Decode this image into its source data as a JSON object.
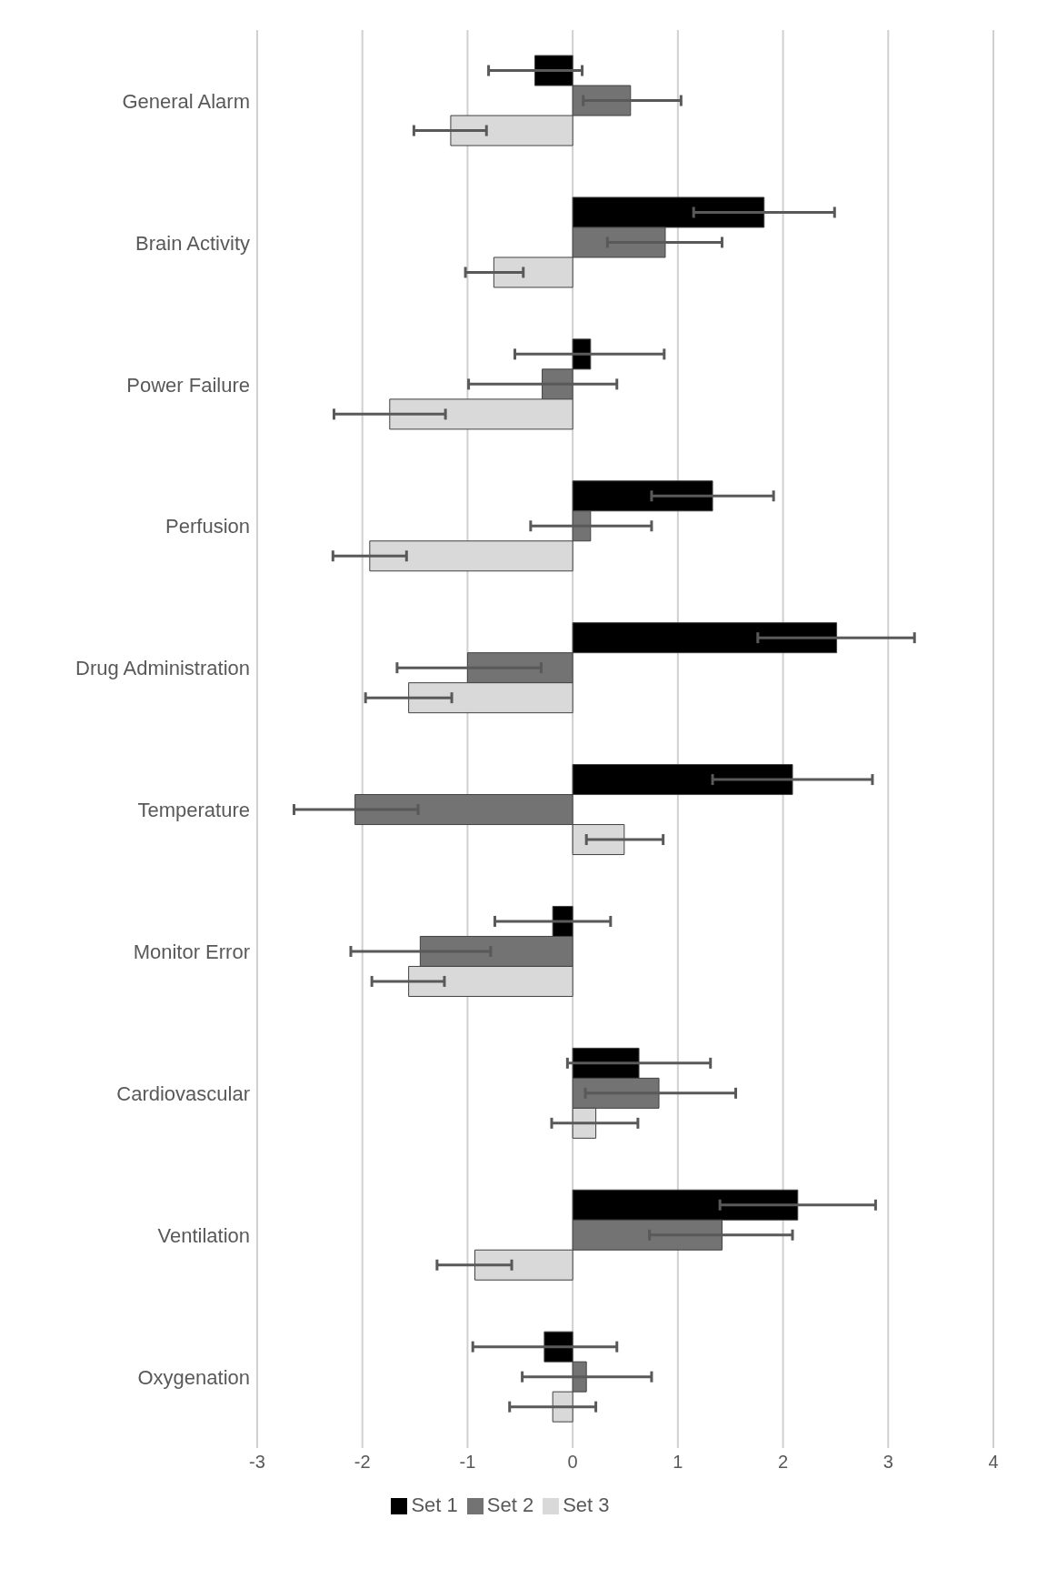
{
  "chart_data": {
    "type": "bar",
    "orientation": "horizontal",
    "categories": [
      "General Alarm",
      "Brain Activity",
      "Power Failure",
      "Perfusion",
      "Drug Administration",
      "Temperature",
      "Monitor Error",
      "Cardiovascular",
      "Ventilation",
      "Oxygenation"
    ],
    "series": [
      {
        "name": "Set 1",
        "color": "#000000",
        "values": [
          -0.36,
          1.82,
          0.17,
          1.33,
          2.51,
          2.09,
          -0.19,
          0.63,
          2.14,
          -0.27
        ],
        "errors": [
          [
            -0.8,
            0.09
          ],
          [
            1.15,
            2.49
          ],
          [
            -0.55,
            0.87
          ],
          [
            0.75,
            1.91
          ],
          [
            1.76,
            3.25
          ],
          [
            1.33,
            2.85
          ],
          [
            -0.74,
            0.36
          ],
          [
            -0.05,
            1.31
          ],
          [
            1.4,
            2.88
          ],
          [
            -0.95,
            0.42
          ]
        ]
      },
      {
        "name": "Set 2",
        "color": "#737373",
        "values": [
          0.55,
          0.88,
          -0.29,
          0.17,
          -1.0,
          -2.07,
          -1.45,
          0.82,
          1.42,
          0.13
        ],
        "errors": [
          [
            0.1,
            1.03
          ],
          [
            0.33,
            1.42
          ],
          [
            -0.99,
            0.42
          ],
          [
            -0.4,
            0.75
          ],
          [
            -1.67,
            -0.3
          ],
          [
            -2.65,
            -1.47
          ],
          [
            -2.11,
            -0.78
          ],
          [
            0.12,
            1.55
          ],
          [
            0.73,
            2.09
          ],
          [
            -0.48,
            0.75
          ]
        ]
      },
      {
        "name": "Set 3",
        "color": "#d9d9d9",
        "values": [
          -1.16,
          -0.75,
          -1.74,
          -1.93,
          -1.56,
          0.49,
          -1.56,
          0.22,
          -0.93,
          -0.19
        ],
        "errors": [
          [
            -1.51,
            -0.82
          ],
          [
            -1.02,
            -0.47
          ],
          [
            -2.27,
            -1.21
          ],
          [
            -2.28,
            -1.58
          ],
          [
            -1.97,
            -1.15
          ],
          [
            0.13,
            0.86
          ],
          [
            -1.91,
            -1.22
          ],
          [
            -0.2,
            0.62
          ],
          [
            -1.29,
            -0.58
          ],
          [
            -0.6,
            0.22
          ]
        ]
      }
    ],
    "xlim": [
      -3,
      4
    ],
    "xticks": [
      -3,
      -2,
      -1,
      0,
      1,
      2,
      3,
      4
    ],
    "grid": "x",
    "legend": "bottom"
  }
}
